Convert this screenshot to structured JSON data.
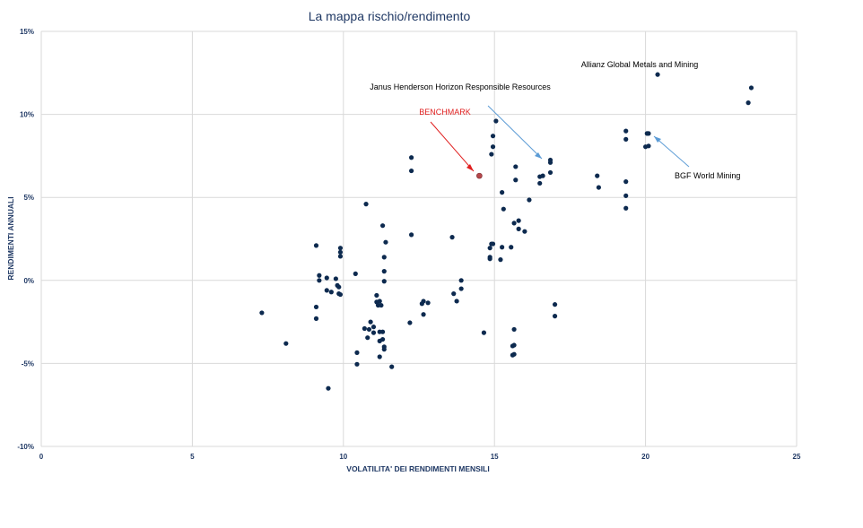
{
  "chart_data": {
    "type": "scatter",
    "title": "La mappa rischio/rendimento",
    "xlabel": "VOLATILITA' DEI RENDIMENTI MENSILI",
    "ylabel": "RENDIMENTI ANNUALI",
    "xlim": [
      0,
      25
    ],
    "ylim": [
      -10,
      15
    ],
    "x_ticks": [
      0,
      5,
      10,
      15,
      20,
      25
    ],
    "x_tick_labels": [
      "0",
      "5",
      "10",
      "15",
      "20",
      "25"
    ],
    "y_ticks": [
      -10,
      -5,
      0,
      5,
      10,
      15
    ],
    "y_tick_labels": [
      "-10%",
      "-5%",
      "0%",
      "5%",
      "10%",
      "15%"
    ],
    "grid": true,
    "colors": {
      "points": "#0d2a4f",
      "benchmark": "#b5474b",
      "arrow_red": "#e02020",
      "arrow_blue": "#5b9bd5",
      "grid": "#d9d9d9",
      "axis_text": "#1f3864"
    },
    "benchmark": {
      "label": "BENCHMARK",
      "x": 14.5,
      "y": 6.3
    },
    "annotations": [
      {
        "label": "Allianz Global Metals and Mining",
        "x": 20.4,
        "y": 12.4
      },
      {
        "label": "Janus Henderson Horizon Responsible Resources",
        "x": 16.8,
        "y": 7.2
      },
      {
        "label": "BGF World Mining",
        "x": 20.3,
        "y": 8.7
      }
    ],
    "points": [
      [
        7.3,
        -1.95
      ],
      [
        8.1,
        -3.8
      ],
      [
        9.1,
        2.1
      ],
      [
        9.1,
        -1.6
      ],
      [
        9.1,
        -2.3
      ],
      [
        9.2,
        0.3
      ],
      [
        9.2,
        0.0
      ],
      [
        9.45,
        0.15
      ],
      [
        9.45,
        -0.6
      ],
      [
        9.5,
        -6.5
      ],
      [
        9.6,
        -0.7
      ],
      [
        9.75,
        0.1
      ],
      [
        9.8,
        -0.3
      ],
      [
        9.85,
        -0.8
      ],
      [
        9.85,
        -0.4
      ],
      [
        9.9,
        -0.85
      ],
      [
        9.9,
        1.95
      ],
      [
        9.9,
        1.7
      ],
      [
        9.9,
        1.45
      ],
      [
        10.4,
        0.4
      ],
      [
        10.45,
        -4.35
      ],
      [
        10.45,
        -5.05
      ],
      [
        10.7,
        -2.9
      ],
      [
        10.75,
        4.6
      ],
      [
        10.8,
        -3.45
      ],
      [
        10.85,
        -2.95
      ],
      [
        10.9,
        -2.5
      ],
      [
        11.0,
        -3.15
      ],
      [
        11.0,
        -2.8
      ],
      [
        11.1,
        -0.9
      ],
      [
        11.1,
        -1.3
      ],
      [
        11.15,
        -1.5
      ],
      [
        11.2,
        -1.25
      ],
      [
        11.2,
        -3.1
      ],
      [
        11.2,
        -3.65
      ],
      [
        11.2,
        -4.6
      ],
      [
        11.25,
        -1.5
      ],
      [
        11.3,
        3.3
      ],
      [
        11.3,
        -3.55
      ],
      [
        11.3,
        -3.1
      ],
      [
        11.35,
        -4.0
      ],
      [
        11.35,
        -4.15
      ],
      [
        11.35,
        1.4
      ],
      [
        11.35,
        0.55
      ],
      [
        11.35,
        -0.05
      ],
      [
        11.4,
        2.3
      ],
      [
        11.6,
        -5.2
      ],
      [
        12.2,
        -2.55
      ],
      [
        12.25,
        7.4
      ],
      [
        12.25,
        6.6
      ],
      [
        12.25,
        2.75
      ],
      [
        12.6,
        -1.4
      ],
      [
        12.65,
        -1.25
      ],
      [
        12.65,
        -2.05
      ],
      [
        12.8,
        -1.35
      ],
      [
        13.6,
        2.6
      ],
      [
        13.65,
        -0.8
      ],
      [
        13.75,
        -1.25
      ],
      [
        13.9,
        -0.5
      ],
      [
        13.9,
        0.0
      ],
      [
        14.65,
        -3.15
      ],
      [
        14.85,
        1.4
      ],
      [
        14.85,
        1.95
      ],
      [
        14.85,
        1.3
      ],
      [
        14.9,
        2.2
      ],
      [
        14.9,
        7.6
      ],
      [
        14.95,
        8.7
      ],
      [
        14.95,
        2.2
      ],
      [
        14.95,
        8.05
      ],
      [
        15.05,
        9.6
      ],
      [
        15.2,
        1.25
      ],
      [
        15.25,
        2.0
      ],
      [
        15.25,
        5.3
      ],
      [
        15.3,
        4.3
      ],
      [
        15.55,
        2.0
      ],
      [
        15.6,
        -3.95
      ],
      [
        15.6,
        -4.5
      ],
      [
        15.65,
        -3.9
      ],
      [
        15.65,
        -4.45
      ],
      [
        15.65,
        -2.95
      ],
      [
        15.65,
        3.45
      ],
      [
        15.7,
        6.85
      ],
      [
        15.7,
        6.05
      ],
      [
        15.8,
        3.6
      ],
      [
        15.8,
        3.1
      ],
      [
        16.0,
        2.95
      ],
      [
        16.15,
        4.85
      ],
      [
        16.5,
        5.85
      ],
      [
        16.5,
        6.25
      ],
      [
        16.6,
        6.3
      ],
      [
        16.85,
        6.5
      ],
      [
        16.85,
        7.1
      ],
      [
        16.85,
        7.25
      ],
      [
        17.0,
        -1.45
      ],
      [
        17.0,
        -2.15
      ],
      [
        18.4,
        6.3
      ],
      [
        18.45,
        5.6
      ],
      [
        19.35,
        9.0
      ],
      [
        19.35,
        8.5
      ],
      [
        19.35,
        5.95
      ],
      [
        19.35,
        5.1
      ],
      [
        19.35,
        4.35
      ],
      [
        20.0,
        8.05
      ],
      [
        20.05,
        8.85
      ],
      [
        20.1,
        8.1
      ],
      [
        20.1,
        8.85
      ],
      [
        20.4,
        12.4
      ],
      [
        23.4,
        10.7
      ],
      [
        23.5,
        11.6
      ]
    ]
  }
}
